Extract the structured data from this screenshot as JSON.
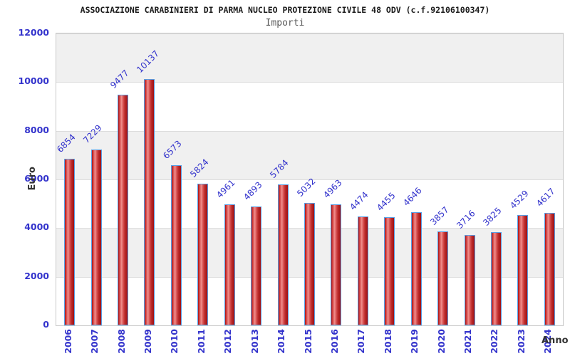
{
  "header": {
    "title": "ASSOCIAZIONE CARABINIERI DI PARMA NUCLEO PROTEZIONE CIVILE 48 ODV (c.f.92106100347)",
    "subtitle": "Importi"
  },
  "chart_data": {
    "type": "bar",
    "title": "ASSOCIAZIONE CARABINIERI DI PARMA NUCLEO PROTEZIONE CIVILE 48 ODV (c.f.92106100347)",
    "subtitle": "Importi",
    "xlabel": "Anno",
    "ylabel": "Euro",
    "categories": [
      "2006",
      "2007",
      "2008",
      "2009",
      "2010",
      "2011",
      "2012",
      "2013",
      "2014",
      "2015",
      "2016",
      "2017",
      "2018",
      "2019",
      "2020",
      "2021",
      "2022",
      "2023",
      "2024"
    ],
    "values": [
      6854,
      7229,
      9477,
      10137,
      6573,
      5824,
      4961,
      4893,
      5784,
      5032,
      4963,
      4474,
      4455,
      4646,
      3857,
      3716,
      3825,
      4529,
      4617
    ],
    "ylim": [
      0,
      12000
    ],
    "yticks": [
      0,
      2000,
      4000,
      6000,
      8000,
      10000,
      12000
    ],
    "grid": "horizontal-bands",
    "legend": "none",
    "bar_labels_rotation_deg": -45,
    "xtick_rotation_deg": -90
  },
  "colors": {
    "tick_label": "#3333cc",
    "value_label": "#3333cc",
    "bar_border": "#58a0e6",
    "bar_dark": "#9e1114",
    "bar_mid": "#cc3333",
    "bar_light": "#f0908e",
    "band_gray": "#f0f0f0",
    "band_white": "#ffffff",
    "grid_line": "#dcdcdc",
    "axis_title_color": "#333333"
  }
}
